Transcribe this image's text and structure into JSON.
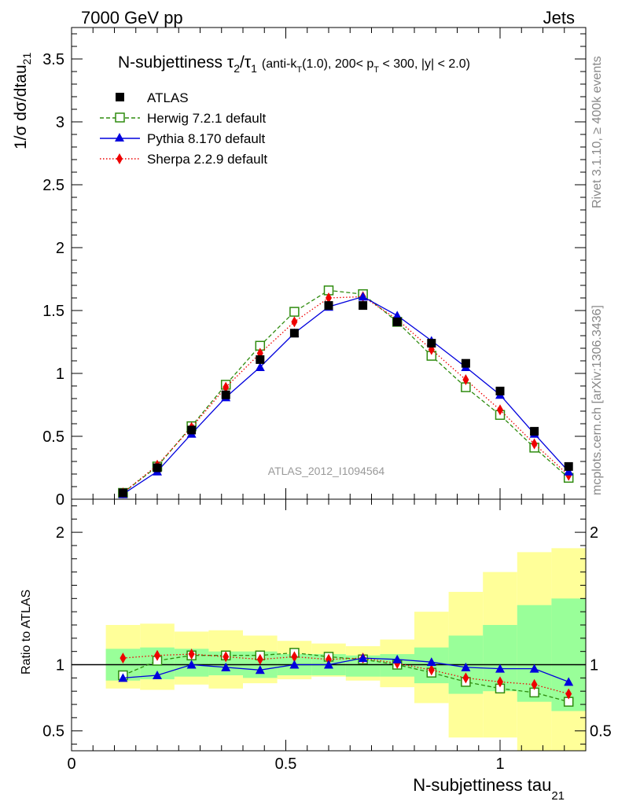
{
  "header": {
    "left": "7000 GeV pp",
    "right": "Jets"
  },
  "plot_title": {
    "main": "N-subjettiness τ",
    "sub2": "2",
    "slash": "/τ",
    "sub1": "1",
    "range_part1": "(anti-k",
    "range_T": "T",
    "range_part2": "(1.0), 200< p",
    "range_pT": "T",
    "range_part3": " < 300, |y| < 2.0)"
  },
  "y_axis_label": {
    "text": "1/σ dσ/dtau",
    "sub": "21"
  },
  "ratio_axis_label": "Ratio to ATLAS",
  "x_axis_label": {
    "text": "N-subjettiness tau",
    "sub": "21"
  },
  "analysis_id": "ATLAS_2012_I1094564",
  "side_labels": {
    "rivet": "Rivet 3.1.10, ≥ 400k events",
    "mcplots": "mcplots.cern.ch [arXiv:1306.3436]"
  },
  "legend": [
    {
      "name": "ATLAS",
      "style": "data"
    },
    {
      "name": "Herwig 7.2.1 default",
      "style": "herwig"
    },
    {
      "name": "Pythia 8.170 default",
      "style": "pythia"
    },
    {
      "name": "Sherpa 2.2.9 default",
      "style": "sherpa"
    }
  ],
  "colors": {
    "data": "#000000",
    "herwig": "#2e8b0e",
    "pythia": "#0000dd",
    "sherpa": "#ee0000",
    "band_inner": "#99ff99",
    "band_outer": "#ffff99"
  },
  "chart_data": {
    "type": "line",
    "x": [
      0.12,
      0.2,
      0.28,
      0.36,
      0.44,
      0.52,
      0.6,
      0.68,
      0.76,
      0.84,
      0.92,
      1.0,
      1.08,
      1.16
    ],
    "xlim": [
      0,
      1.2
    ],
    "ylim": [
      0,
      3.75
    ],
    "yticks": [
      0,
      0.5,
      1,
      1.5,
      2,
      2.5,
      3,
      3.5
    ],
    "ytick_labels": [
      "0",
      "0.5",
      "1",
      "1.5",
      "2",
      "2.5",
      "3",
      "3.5"
    ],
    "xticks": [
      0,
      0.5,
      1
    ],
    "xtick_labels": [
      "0",
      "0.5",
      "1"
    ],
    "series": [
      {
        "name": "ATLAS",
        "key": "data",
        "values": [
          0.05,
          0.25,
          0.55,
          0.83,
          1.11,
          1.32,
          1.54,
          1.54,
          1.41,
          1.24,
          1.08,
          0.86,
          0.54,
          0.26
        ]
      },
      {
        "name": "Herwig 7.2.1 default",
        "key": "herwig",
        "values": [
          0.05,
          0.26,
          0.58,
          0.91,
          1.22,
          1.49,
          1.66,
          1.63,
          1.41,
          1.14,
          0.89,
          0.67,
          0.41,
          0.17
        ]
      },
      {
        "name": "Pythia 8.170 default",
        "key": "pythia",
        "values": [
          0.04,
          0.22,
          0.52,
          0.81,
          1.05,
          1.32,
          1.53,
          1.61,
          1.46,
          1.26,
          1.05,
          0.83,
          0.52,
          0.22
        ]
      },
      {
        "name": "Sherpa 2.2.9 default",
        "key": "sherpa",
        "values": [
          0.05,
          0.27,
          0.57,
          0.89,
          1.16,
          1.41,
          1.6,
          1.61,
          1.43,
          1.19,
          0.95,
          0.71,
          0.44,
          0.19
        ]
      }
    ],
    "ratio": {
      "ylim": [
        0.35,
        2.25
      ],
      "yticks": [
        0.5,
        1,
        2
      ],
      "ytick_labels": [
        "0.5",
        "1",
        "2"
      ],
      "bin_edges": [
        0.08,
        0.16,
        0.24,
        0.32,
        0.4,
        0.48,
        0.56,
        0.64,
        0.72,
        0.8,
        0.88,
        0.96,
        1.04,
        1.12,
        1.2
      ],
      "band_inner": [
        [
          0.88,
          1.12
        ],
        [
          0.89,
          1.13
        ],
        [
          0.91,
          1.12
        ],
        [
          0.92,
          1.1
        ],
        [
          0.9,
          1.1
        ],
        [
          0.92,
          1.08
        ],
        [
          0.92,
          1.08
        ],
        [
          0.91,
          1.07
        ],
        [
          0.91,
          1.08
        ],
        [
          0.86,
          1.13
        ],
        [
          0.78,
          1.22
        ],
        [
          0.8,
          1.3
        ],
        [
          0.72,
          1.45
        ],
        [
          0.65,
          1.5
        ]
      ],
      "band_outer": [
        [
          0.82,
          1.3
        ],
        [
          0.81,
          1.31
        ],
        [
          0.85,
          1.25
        ],
        [
          0.82,
          1.26
        ],
        [
          0.86,
          1.22
        ],
        [
          0.89,
          1.18
        ],
        [
          0.91,
          1.16
        ],
        [
          0.88,
          1.14
        ],
        [
          0.83,
          1.19
        ],
        [
          0.71,
          1.4
        ],
        [
          0.45,
          1.55
        ],
        [
          0.45,
          1.7
        ],
        [
          0.35,
          1.85
        ],
        [
          0.35,
          1.88
        ]
      ],
      "series": [
        {
          "name": "Herwig 7.2.1 default",
          "key": "herwig",
          "values": [
            0.92,
            1.03,
            1.07,
            1.07,
            1.07,
            1.09,
            1.06,
            1.04,
            1.0,
            0.94,
            0.87,
            0.82,
            0.79,
            0.72
          ]
        },
        {
          "name": "Pythia 8.170 default",
          "key": "pythia",
          "values": [
            0.9,
            0.92,
            1.0,
            0.98,
            0.96,
            1.0,
            1.0,
            1.05,
            1.04,
            1.02,
            0.98,
            0.97,
            0.97,
            0.87
          ]
        },
        {
          "name": "Sherpa 2.2.9 default",
          "key": "sherpa",
          "values": [
            1.05,
            1.07,
            1.08,
            1.06,
            1.04,
            1.06,
            1.04,
            1.05,
            1.01,
            0.96,
            0.9,
            0.87,
            0.85,
            0.78
          ]
        }
      ]
    }
  }
}
